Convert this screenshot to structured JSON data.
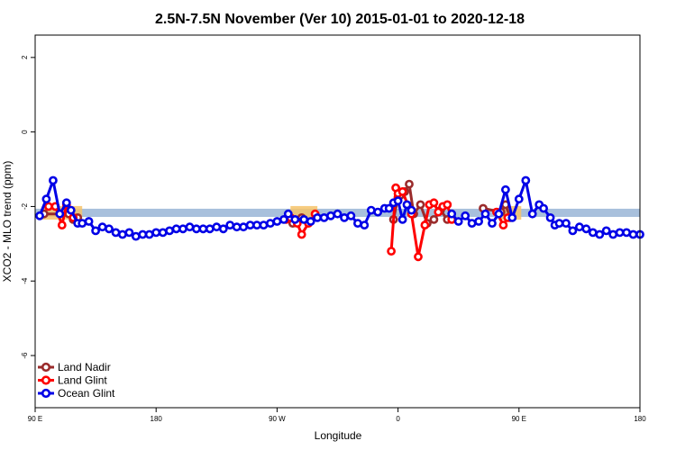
{
  "chart_data": {
    "type": "line",
    "title": "2.5N-7.5N November (Ver 10)   2015-01-01 to 2020-12-18",
    "xlabel": "Longitude",
    "ylabel": "XCO2 - MLO trend (ppm)",
    "xlim": [
      -90,
      180
    ],
    "ylim": [
      -7.4,
      2.6
    ],
    "x_ticks": [
      {
        "value": -90,
        "label": "90 E"
      },
      {
        "value": -36,
        "label": "180"
      },
      {
        "value": 18,
        "label": "90 W"
      },
      {
        "value": 72,
        "label": "0"
      },
      {
        "value": 126,
        "label": "90 E"
      },
      {
        "value": 180,
        "label": "180"
      }
    ],
    "y_ticks": [
      2,
      0,
      -2,
      -4,
      -6
    ],
    "grid": false,
    "legend_position": "bottom-left",
    "colors": {
      "band": "#a8c0dc",
      "band_highlight": "#f6c36a",
      "land_nadir": "#9a2b2b",
      "land_glint": "#ff0000",
      "ocean_glint": "#0000e6"
    },
    "reference_band": {
      "y_low": -2.28,
      "y_high": -2.06,
      "color": "#a8c0dc"
    },
    "highlight_ranges": [
      [
        -87,
        -69
      ],
      [
        24,
        36
      ],
      [
        118,
        127
      ]
    ],
    "series": [
      {
        "name": "Land Nadir",
        "color": "#9a2b2b",
        "segments": [
          [
            [
              -86,
              -2.2
            ],
            [
              -75,
              -2.2
            ],
            [
              -73,
              -2.35
            ],
            [
              -71,
              -2.3
            ]
          ],
          [
            [
              25,
              -2.45
            ],
            [
              29,
              -2.3
            ]
          ],
          [
            [
              70,
              -2.35
            ],
            [
              72,
              -1.75
            ],
            [
              73,
              -1.7
            ],
            [
              75,
              -1.6
            ],
            [
              77,
              -1.4
            ],
            [
              79,
              -2.2
            ],
            [
              82,
              -1.95
            ],
            [
              85,
              -2.45
            ],
            [
              88,
              -2.35
            ],
            [
              91,
              -2.1
            ],
            [
              94,
              -2.35
            ]
          ],
          [
            [
              110,
              -2.05
            ],
            [
              118,
              -2.15
            ],
            [
              120,
              -1.95
            ],
            [
              122,
              -2.3
            ]
          ]
        ]
      },
      {
        "name": "Land Glint",
        "color": "#ff0000",
        "segments": [
          [
            [
              -84,
              -2.0
            ],
            [
              -81,
              -2.0
            ],
            [
              -78,
              -2.5
            ],
            [
              -76,
              -1.95
            ],
            [
              -73,
              -2.3
            ]
          ],
          [
            [
              22,
              -2.35
            ],
            [
              24,
              -2.3
            ],
            [
              27,
              -2.45
            ],
            [
              29,
              -2.75
            ],
            [
              32,
              -2.45
            ],
            [
              35,
              -2.2
            ]
          ],
          [
            [
              69,
              -3.2
            ],
            [
              71,
              -1.5
            ],
            [
              72,
              -1.65
            ],
            [
              74,
              -1.6
            ],
            [
              78,
              -2.2
            ],
            [
              81,
              -3.35
            ],
            [
              84,
              -2.5
            ],
            [
              86,
              -1.95
            ],
            [
              88,
              -1.9
            ],
            [
              90,
              -2.15
            ],
            [
              92,
              -2.0
            ],
            [
              94,
              -1.95
            ],
            [
              96,
              -2.35
            ]
          ],
          [
            [
              116,
              -2.15
            ],
            [
              119,
              -2.5
            ],
            [
              121,
              -2.3
            ]
          ]
        ]
      },
      {
        "name": "Ocean Glint",
        "color": "#0000e6",
        "segments": [
          [
            [
              -88,
              -2.25
            ],
            [
              -85,
              -1.8
            ],
            [
              -82,
              -1.3
            ],
            [
              -79,
              -2.2
            ],
            [
              -76,
              -1.9
            ],
            [
              -74,
              -2.1
            ],
            [
              -71,
              -2.45
            ],
            [
              -69,
              -2.45
            ],
            [
              -66,
              -2.4
            ],
            [
              -63,
              -2.65
            ],
            [
              -60,
              -2.55
            ],
            [
              -57,
              -2.6
            ],
            [
              -54,
              -2.7
            ],
            [
              -51,
              -2.75
            ],
            [
              -48,
              -2.7
            ],
            [
              -45,
              -2.8
            ],
            [
              -42,
              -2.75
            ],
            [
              -39,
              -2.75
            ],
            [
              -36,
              -2.7
            ],
            [
              -33,
              -2.7
            ],
            [
              -30,
              -2.65
            ],
            [
              -27,
              -2.6
            ],
            [
              -24,
              -2.6
            ],
            [
              -21,
              -2.55
            ],
            [
              -18,
              -2.6
            ],
            [
              -15,
              -2.6
            ],
            [
              -12,
              -2.6
            ],
            [
              -9,
              -2.55
            ],
            [
              -6,
              -2.6
            ],
            [
              -3,
              -2.5
            ],
            [
              0,
              -2.55
            ],
            [
              3,
              -2.55
            ],
            [
              6,
              -2.5
            ],
            [
              9,
              -2.5
            ],
            [
              12,
              -2.5
            ],
            [
              15,
              -2.45
            ],
            [
              18,
              -2.4
            ],
            [
              21,
              -2.35
            ],
            [
              23,
              -2.2
            ],
            [
              26,
              -2.35
            ],
            [
              30,
              -2.35
            ],
            [
              33,
              -2.4
            ],
            [
              36,
              -2.3
            ],
            [
              39,
              -2.3
            ],
            [
              42,
              -2.25
            ],
            [
              45,
              -2.2
            ],
            [
              48,
              -2.3
            ],
            [
              51,
              -2.25
            ],
            [
              54,
              -2.45
            ],
            [
              57,
              -2.5
            ],
            [
              60,
              -2.1
            ],
            [
              63,
              -2.15
            ],
            [
              66,
              -2.05
            ],
            [
              68,
              -2.05
            ],
            [
              70,
              -1.9
            ],
            [
              72,
              -1.85
            ],
            [
              74,
              -2.35
            ],
            [
              76,
              -1.95
            ],
            [
              78,
              -2.1
            ]
          ],
          [
            [
              96,
              -2.2
            ],
            [
              99,
              -2.4
            ],
            [
              102,
              -2.25
            ],
            [
              105,
              -2.45
            ],
            [
              108,
              -2.4
            ],
            [
              111,
              -2.2
            ],
            [
              114,
              -2.45
            ],
            [
              117,
              -2.2
            ],
            [
              120,
              -1.55
            ],
            [
              123,
              -2.3
            ],
            [
              126,
              -1.8
            ],
            [
              129,
              -1.3
            ],
            [
              132,
              -2.2
            ],
            [
              135,
              -1.95
            ],
            [
              137,
              -2.05
            ],
            [
              140,
              -2.3
            ],
            [
              142,
              -2.5
            ],
            [
              144,
              -2.45
            ],
            [
              147,
              -2.45
            ],
            [
              150,
              -2.65
            ],
            [
              153,
              -2.55
            ],
            [
              156,
              -2.6
            ],
            [
              159,
              -2.7
            ],
            [
              162,
              -2.75
            ],
            [
              165,
              -2.65
            ],
            [
              168,
              -2.75
            ],
            [
              171,
              -2.7
            ],
            [
              174,
              -2.7
            ],
            [
              177,
              -2.75
            ],
            [
              180,
              -2.75
            ]
          ]
        ]
      }
    ]
  }
}
